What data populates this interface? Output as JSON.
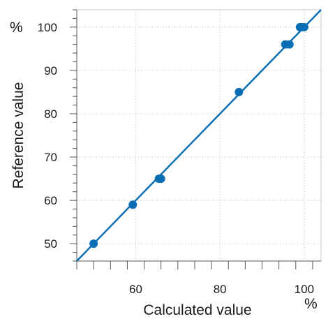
{
  "chart_data": {
    "type": "scatter",
    "xlabel": "Calculated value",
    "ylabel": "Reference value",
    "x_unit": "%",
    "y_unit": "%",
    "xlim": [
      46,
      104
    ],
    "ylim": [
      46,
      104
    ],
    "xticks": [
      60,
      80,
      100
    ],
    "yticks": [
      50,
      60,
      70,
      80,
      90,
      100
    ],
    "grid": true,
    "series": [
      {
        "points": [
          {
            "x": 50,
            "y": 50
          },
          {
            "x": 59.3,
            "y": 59
          },
          {
            "x": 65.5,
            "y": 65
          },
          {
            "x": 66,
            "y": 65
          },
          {
            "x": 84.5,
            "y": 85
          },
          {
            "x": 95.5,
            "y": 96
          },
          {
            "x": 96.5,
            "y": 96
          },
          {
            "x": 99,
            "y": 100
          },
          {
            "x": 99.5,
            "y": 100
          },
          {
            "x": 100,
            "y": 100
          }
        ],
        "color": "#0a6eb4"
      }
    ],
    "fit_line": {
      "from": [
        46,
        46
      ],
      "to": [
        104,
        104
      ],
      "color": "#0a6eb4"
    }
  }
}
